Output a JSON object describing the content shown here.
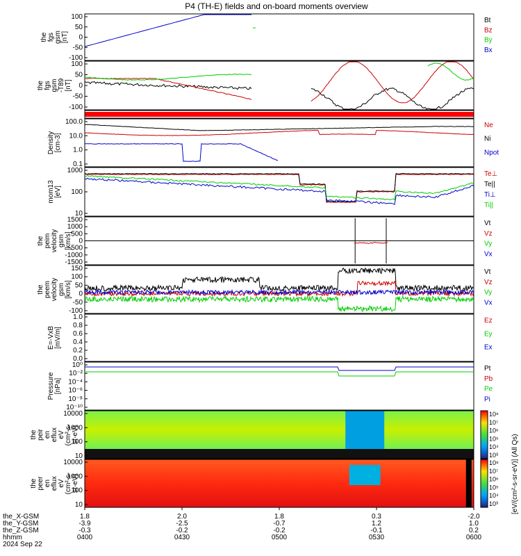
{
  "title": "P4 (TH-E) fields and on-board moments overview",
  "chart_data": {
    "type": "line",
    "panels": [
      {
        "id": "fgs",
        "ylabel": [
          "the",
          "fgs",
          "gsm",
          "[nT]"
        ],
        "yticks": [
          "100",
          "50",
          "0",
          "-50",
          "-100"
        ],
        "ylim": [
          -100,
          100
        ],
        "legend": [
          {
            "label": "Bt",
            "color": "#000000"
          },
          {
            "label": "Bz",
            "color": "#cc0000"
          },
          {
            "label": "By",
            "color": "#00cc00"
          },
          {
            "label": "Bx",
            "color": "#0000cc"
          }
        ]
      },
      {
        "id": "fgs_tr",
        "ylabel": [
          "the",
          "fgs",
          "gsm",
          "-T89",
          "[nT]"
        ],
        "yticks": [
          "100",
          "50",
          "0",
          "-50",
          "-100"
        ],
        "ylim": [
          -120,
          120
        ],
        "legend": []
      },
      {
        "id": "bar",
        "ylabel": [],
        "yticks": [],
        "legend": []
      },
      {
        "id": "density",
        "ylabel": [
          "Density",
          "[cm-3]"
        ],
        "yticks": [
          "100.0",
          "10.0",
          "1.0",
          "0.1"
        ],
        "log": true,
        "legend": [
          {
            "label": "Ne",
            "color": "#cc0000"
          },
          {
            "label": "Ni",
            "color": "#000000"
          },
          {
            "label": "Npot",
            "color": "#0000cc"
          }
        ]
      },
      {
        "id": "temp",
        "ylabel": [
          "mom13",
          "[eV]"
        ],
        "yticks": [
          "1000",
          "100",
          "10"
        ],
        "log": true,
        "legend": [
          {
            "label": "Te⊥",
            "color": "#cc0000"
          },
          {
            "label": "Te||",
            "color": "#000000"
          },
          {
            "label": "Ti⊥",
            "color": "#0000cc"
          },
          {
            "label": "Ti||",
            "color": "#00cc00"
          }
        ]
      },
      {
        "id": "peim_v",
        "ylabel": [
          "the",
          "peim",
          "velocity",
          "gsm",
          "[km/s]"
        ],
        "yticks": [
          "1500",
          "1000",
          "500",
          "0",
          "-500",
          "-1000",
          "-1500"
        ],
        "ylim": [
          -1500,
          1500
        ],
        "legend": [
          {
            "label": "Vt",
            "color": "#000000"
          },
          {
            "label": "Vz",
            "color": "#cc0000"
          },
          {
            "label": "Vy",
            "color": "#00cc00"
          },
          {
            "label": "Vx",
            "color": "#0000cc"
          }
        ]
      },
      {
        "id": "peem_v",
        "ylabel": [
          "the",
          "peem",
          "velocity",
          "gsm",
          "[km/s]"
        ],
        "yticks": [
          "150",
          "100",
          "50",
          "0",
          "-50",
          "-100"
        ],
        "ylim": [
          -150,
          150
        ],
        "legend": [
          {
            "label": "Vt",
            "color": "#000000"
          },
          {
            "label": "Vz",
            "color": "#cc0000"
          },
          {
            "label": "Vy",
            "color": "#00cc00"
          },
          {
            "label": "Vx",
            "color": "#0000cc"
          }
        ]
      },
      {
        "id": "efield",
        "ylabel": [
          "E=-VxB",
          "[mV/m]"
        ],
        "yticks": [
          "1.0",
          "0.8",
          "0.6",
          "0.4",
          "0.2",
          "0.0"
        ],
        "ylim": [
          0,
          1
        ],
        "legend": [
          {
            "label": "Ez",
            "color": "#cc0000"
          },
          {
            "label": "Ey",
            "color": "#00cc00"
          },
          {
            "label": "Ex",
            "color": "#0000cc"
          }
        ]
      },
      {
        "id": "pressure",
        "ylabel": [
          "Pressure",
          "[nPa]"
        ],
        "yticks": [
          "10⁰",
          "10⁻²",
          "10⁻⁴",
          "10⁻⁶",
          "10⁻⁸",
          "10⁻¹⁰"
        ],
        "log": true,
        "legend": [
          {
            "label": "Pt",
            "color": "#000000"
          },
          {
            "label": "Pb",
            "color": "#cc0000"
          },
          {
            "label": "Pe",
            "color": "#00cc00"
          },
          {
            "label": "Pi",
            "color": "#0000cc"
          }
        ]
      },
      {
        "id": "peir",
        "ylabel": [
          "the",
          "peir",
          "en",
          "eflux",
          "eV",
          "(cm²-s-",
          "sr-eV)"
        ],
        "yticks": [
          "10000",
          "1000",
          "100",
          "10"
        ],
        "log": true,
        "legend": []
      },
      {
        "id": "peer",
        "ylabel": [
          "the",
          "peer",
          "en",
          "eflux",
          "eV",
          "(cm²-s-",
          "sr-eV)"
        ],
        "yticks": [
          "10000",
          "1000",
          "100",
          "10"
        ],
        "log": true,
        "legend": []
      }
    ],
    "colorbar_upper": {
      "ticks": [
        "10⁸",
        "10⁷",
        "10⁶",
        "10⁵",
        "10⁴",
        "10³"
      ]
    },
    "colorbar_lower": {
      "ticks": [
        "10⁸",
        "10⁷",
        "10⁶",
        "10⁵",
        "10⁴",
        "10³"
      ]
    },
    "colorbar_label": "[eV/(cm²-s-sr-eV)] (All Qs)",
    "xaxis": {
      "rows": [
        {
          "label": "the_X-GSM",
          "values": [
            "1.8",
            "2.0",
            "1.8",
            "0.3",
            "-2.0"
          ]
        },
        {
          "label": "the_Y-GSM",
          "values": [
            "-3.9",
            "-2.5",
            "-0.7",
            "1.2",
            "1.0"
          ]
        },
        {
          "label": "the_Z-GSM",
          "values": [
            "-0.3",
            "-0.2",
            "-0.2",
            "-0.1",
            "0.2"
          ]
        },
        {
          "label": "hhmm",
          "values": [
            "0400",
            "0430",
            "0500",
            "0530",
            "0600"
          ]
        }
      ],
      "date": "2024 Sep 22"
    }
  }
}
